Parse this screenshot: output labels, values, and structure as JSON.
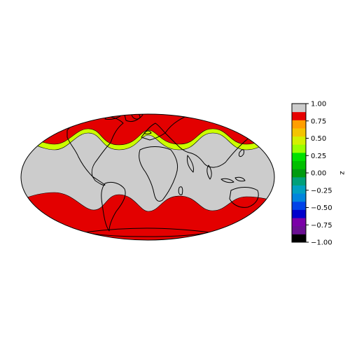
{
  "chart_data": {
    "type": "filled-contour-map",
    "projection": "mollweide",
    "colorbar": {
      "label": "z",
      "ticks": [
        "1.00",
        "0.75",
        "0.50",
        "0.25",
        "0.00",
        "−0.25",
        "−0.50",
        "−0.75",
        "−1.00"
      ],
      "levels": [
        -1.0,
        -0.875,
        -0.75,
        -0.625,
        -0.5,
        -0.375,
        -0.25,
        -0.125,
        0.0,
        0.125,
        0.25,
        0.375,
        0.5,
        0.625,
        0.75,
        0.875,
        1.0
      ],
      "colors": [
        "#000000",
        "#6a0f92",
        "#7b00a8",
        "#0000cc",
        "#0043e8",
        "#0085dd",
        "#00a0c0",
        "#00a07a",
        "#009b10",
        "#00c000",
        "#00e000",
        "#99ff00",
        "#d4f000",
        "#f4c400",
        "#ff9e00",
        "#e60000",
        "#cccccc"
      ]
    },
    "regions": [
      {
        "band": "northern high latitudes",
        "level_range": [
          0.75,
          1.0
        ],
        "color": "#e30000"
      },
      {
        "band": "northern mid latitudes edge",
        "level_range": [
          0.25,
          0.5
        ],
        "color": "#ccff00"
      },
      {
        "band": "tropics",
        "level_range": [
          0.875,
          1.0
        ],
        "color": "#cccccc"
      },
      {
        "band": "southern high latitudes",
        "level_range": [
          0.75,
          1.0
        ],
        "color": "#e30000"
      }
    ]
  }
}
